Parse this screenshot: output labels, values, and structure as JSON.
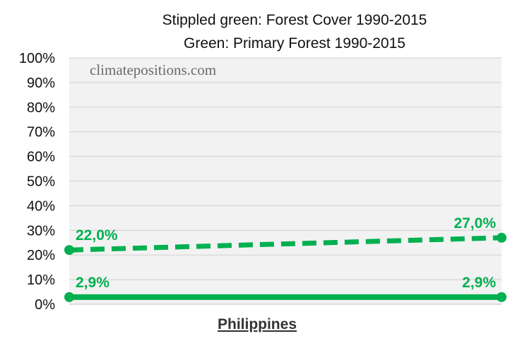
{
  "chart_data": {
    "type": "line",
    "title_lines": [
      "Stippled green: Forest Cover 1990-2015",
      "Green: Primary Forest 1990-2015"
    ],
    "watermark": "climatepositions.com",
    "category_label": "Philippines",
    "x": [
      1990,
      2015
    ],
    "ylim": [
      0,
      100
    ],
    "y_ticks": [
      "0%",
      "10%",
      "20%",
      "30%",
      "40%",
      "50%",
      "60%",
      "70%",
      "80%",
      "90%",
      "100%"
    ],
    "grid": true,
    "legend": "none",
    "series": [
      {
        "key": "forest_cover",
        "values": [
          22.0,
          27.0
        ],
        "labels": [
          "22,0%",
          "27,0%"
        ],
        "color": "#00b050",
        "style": "dashed"
      },
      {
        "key": "primary_forest",
        "values": [
          2.9,
          2.9
        ],
        "labels": [
          "2,9%",
          "2,9%"
        ],
        "color": "#00b050",
        "style": "solid"
      }
    ],
    "plot_background": "#f2f2f2",
    "grid_color": "#d0d0d0"
  }
}
